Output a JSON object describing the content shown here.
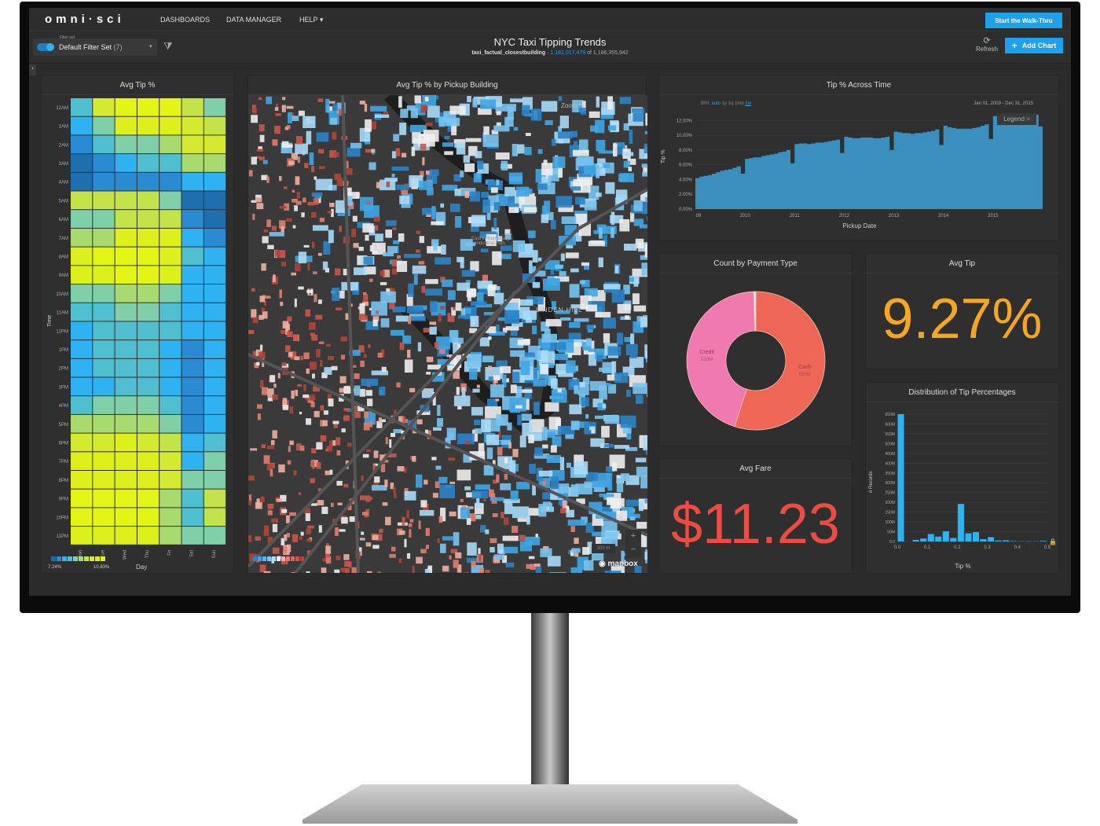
{
  "nav": {
    "logo": "omni·sci",
    "links": [
      "DASHBOARDS",
      "DATA MANAGER",
      "HELP ▾"
    ],
    "walkthru": "Start the Walk-Thru"
  },
  "filter": {
    "label": "Filter set",
    "value": "Default Filter Set",
    "count": "(7)"
  },
  "dashboard": {
    "title": "NYC Taxi Tipping Trends",
    "table": "taxi_factual_closestbuilding",
    "filtered": "1,181,017,479",
    "of": "of 1,186,355,942"
  },
  "toolbar": {
    "refresh": "Refresh",
    "add_chart": "Add Chart"
  },
  "colors": {
    "accent": "#1fa0ea",
    "heat_scale": [
      "#1f6fae",
      "#2a8bd2",
      "#2fb2f2",
      "#4fbfcf",
      "#7fd0a8",
      "#a9da70",
      "#c4e34a",
      "#d4ea30",
      "#ddf01c",
      "#e2f514"
    ],
    "cash": "#ee6655",
    "credit": "#f07ab0",
    "avg_tip": "#f5a623",
    "avg_fare": "#ee4b43",
    "series": "#3a8fbf"
  },
  "chart_data": [
    {
      "type": "heatmap",
      "title": "Avg Tip %",
      "xlabel": "Day",
      "ylabel": "Time",
      "x": [
        "Mon",
        "Tue",
        "Wed",
        "Thu",
        "Fri",
        "Sat",
        "Sun"
      ],
      "y": [
        "12AM",
        "1AM",
        "2AM",
        "3AM",
        "4AM",
        "5AM",
        "6AM",
        "7AM",
        "8AM",
        "9AM",
        "10AM",
        "11AM",
        "12PM",
        "1PM",
        "2PM",
        "3PM",
        "4PM",
        "5PM",
        "6PM",
        "7PM",
        "8PM",
        "9PM",
        "10PM",
        "11PM"
      ],
      "legend": {
        "min": "7.24%",
        "max": "10.83%"
      },
      "values": [
        [
          8.4,
          10.0,
          10.8,
          10.8,
          10.8,
          9.6,
          8.8
        ],
        [
          8.0,
          8.8,
          10.4,
          10.4,
          10.4,
          10.0,
          9.6
        ],
        [
          7.6,
          8.4,
          8.8,
          8.8,
          9.2,
          10.0,
          10.0
        ],
        [
          7.3,
          7.6,
          8.0,
          8.4,
          8.4,
          9.2,
          9.2
        ],
        [
          7.3,
          7.6,
          7.6,
          7.6,
          7.6,
          8.0,
          8.0
        ],
        [
          9.6,
          9.6,
          9.6,
          9.6,
          8.8,
          7.3,
          7.3
        ],
        [
          8.8,
          8.8,
          9.6,
          9.6,
          9.6,
          7.6,
          7.3
        ],
        [
          9.2,
          9.2,
          10.4,
          10.4,
          10.4,
          8.0,
          7.6
        ],
        [
          10.4,
          10.8,
          10.8,
          10.8,
          10.4,
          8.4,
          8.0
        ],
        [
          10.4,
          10.4,
          10.8,
          10.8,
          10.4,
          8.0,
          8.0
        ],
        [
          8.8,
          8.8,
          9.2,
          9.2,
          8.8,
          8.0,
          8.0
        ],
        [
          8.4,
          8.4,
          8.8,
          8.8,
          8.4,
          8.0,
          8.0
        ],
        [
          8.0,
          8.4,
          8.4,
          8.4,
          8.4,
          8.0,
          8.0
        ],
        [
          8.0,
          8.4,
          8.4,
          8.4,
          8.0,
          7.6,
          8.0
        ],
        [
          8.0,
          8.4,
          8.4,
          8.4,
          8.0,
          7.6,
          8.0
        ],
        [
          8.0,
          8.0,
          8.4,
          8.4,
          8.0,
          7.6,
          8.0
        ],
        [
          8.4,
          8.8,
          8.8,
          8.8,
          8.4,
          7.6,
          8.0
        ],
        [
          9.2,
          9.2,
          9.2,
          9.2,
          8.8,
          7.6,
          8.0
        ],
        [
          10.0,
          10.0,
          10.4,
          10.0,
          9.6,
          8.0,
          8.4
        ],
        [
          10.4,
          10.4,
          10.4,
          10.4,
          10.0,
          8.0,
          8.8
        ],
        [
          10.4,
          10.4,
          10.4,
          10.4,
          10.0,
          8.8,
          8.8
        ],
        [
          10.8,
          10.8,
          10.8,
          10.8,
          9.2,
          8.4,
          9.6
        ],
        [
          10.8,
          10.8,
          10.8,
          10.8,
          9.2,
          8.4,
          9.6
        ],
        [
          10.4,
          10.4,
          10.4,
          10.4,
          9.2,
          8.8,
          8.8
        ]
      ]
    },
    {
      "type": "area",
      "title": "Tip % Across Time",
      "xlabel": "Pickup Date",
      "ylabel": "Tip %",
      "bin_options": [
        "auto",
        "1y",
        "1q",
        "1mo",
        "1w"
      ],
      "bin_label": "BIN:",
      "bin_selected": "1w",
      "range": "Jan 01, 2009 - Dec 31, 2015",
      "legend_button": "Legend >",
      "xticks": [
        "09",
        "2010",
        "2011",
        "2012",
        "2013",
        "2014",
        "2015"
      ],
      "yticks": [
        "0.00%",
        "2.00%",
        "4.00%",
        "6.00%",
        "8.00%",
        "10.00%",
        "12.00%"
      ],
      "ylim": [
        0,
        13
      ],
      "xlim": [
        "2009-01",
        "2016-01"
      ],
      "x_start": "2009-01",
      "x_step": "1 month",
      "values": [
        4.2,
        4.4,
        4.5,
        4.6,
        4.8,
        5.0,
        5.2,
        5.3,
        5.4,
        5.6,
        5.8,
        4.8,
        6.8,
        6.9,
        7.0,
        7.0,
        7.2,
        7.3,
        7.4,
        7.5,
        7.7,
        7.8,
        8.0,
        6.2,
        8.8,
        8.9,
        8.9,
        8.8,
        8.9,
        9.0,
        9.0,
        9.1,
        9.2,
        9.3,
        9.4,
        7.6,
        9.8,
        9.7,
        9.6,
        9.6,
        9.7,
        9.7,
        9.7,
        9.6,
        9.6,
        9.7,
        9.8,
        8.0,
        10.5,
        10.4,
        10.3,
        10.3,
        10.2,
        10.3,
        10.3,
        10.4,
        10.5,
        10.6,
        10.8,
        8.7,
        11.3,
        11.1,
        11.0,
        10.9,
        10.9,
        10.9,
        10.9,
        11.0,
        11.1,
        11.3,
        11.5,
        9.5,
        12.6,
        12.6,
        12.7,
        12.6,
        12.5,
        12.5,
        12.6,
        12.6,
        12.7,
        12.7,
        12.8,
        11.2
      ]
    },
    {
      "type": "pie",
      "title": "Count by Payment Type",
      "slices": [
        {
          "label": "Cash",
          "value_label": "630M",
          "value": 630
        },
        {
          "label": "Credit",
          "value_label": "510M",
          "value": 510
        },
        {
          "label": "",
          "value": 6
        }
      ]
    },
    {
      "type": "bar",
      "title": "Distribution of Tip Percentages",
      "xlabel": "Tip %",
      "ylabel": "# Records",
      "ylim": [
        0,
        650
      ],
      "xlim": [
        0,
        0.5
      ],
      "xticks": [
        "0.0",
        "0.1",
        "0.2",
        "0.3",
        "0.4",
        "0.5"
      ],
      "yticks": [
        "0.0",
        "50M",
        "100M",
        "150M",
        "200M",
        "250M",
        "300M",
        "350M",
        "400M",
        "450M",
        "500M",
        "550M",
        "600M",
        "650M"
      ],
      "bin_width": 0.025,
      "x": [
        0,
        0.025,
        0.05,
        0.075,
        0.1,
        0.125,
        0.15,
        0.175,
        0.2,
        0.225,
        0.25,
        0.275,
        0.3,
        0.325,
        0.35,
        0.375,
        0.4,
        0.425,
        0.45,
        0.475
      ],
      "values": [
        650,
        0,
        8,
        15,
        38,
        25,
        52,
        18,
        192,
        42,
        48,
        12,
        22,
        5,
        6,
        2,
        1,
        1,
        1,
        3
      ]
    }
  ],
  "map": {
    "title": "Avg Tip % by Pickup Building",
    "zoom_to": "Zoom to",
    "labels": [
      "East Williamsburg",
      "Industrial Park",
      "LINDEN HILL"
    ],
    "scale": "300 m",
    "attribution": "mapbox"
  },
  "avg_tip": {
    "title": "Avg Tip",
    "value": "9.27%"
  },
  "avg_fare": {
    "title": "Avg Fare",
    "value": "$11.23"
  }
}
